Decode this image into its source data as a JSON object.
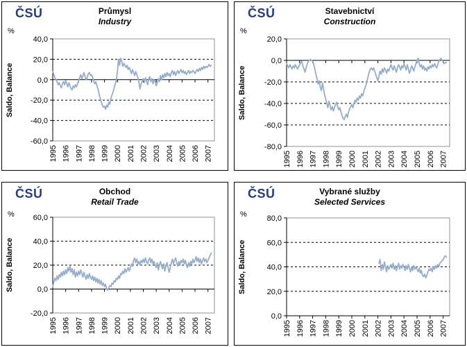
{
  "logo": "ČSÚ",
  "style": {
    "line_color": "#94ADCD",
    "logo_color": "#233C85",
    "plot_border_color": "#909090",
    "grid_color": "#000000"
  },
  "chart_data": [
    {
      "type": "line",
      "title": "Průmysl",
      "subtitle": "Industry",
      "unit": "%",
      "ylabel": "Saldo, Balance",
      "ylim": [
        -60,
        40
      ],
      "y_step": 20,
      "grid": "horizontal-dashed, solid zero axis",
      "legend": "none",
      "x_tick_labels": [
        "1995",
        "1996",
        "1997",
        "1998",
        "1999",
        "2000",
        "2001",
        "2002",
        "2003",
        "2004",
        "2005",
        "2006",
        "2007"
      ],
      "freq": "monthly",
      "start": "1995-01",
      "values": [
        8,
        5,
        2,
        0,
        -2,
        -5,
        -3,
        -6,
        -8,
        -4,
        -2,
        -5,
        -1,
        -4,
        -7,
        -3,
        -6,
        -9,
        -10,
        -6,
        -8,
        -5,
        -7,
        -4,
        -1,
        2,
        5,
        1,
        4,
        7,
        3,
        0,
        2,
        6,
        7,
        4,
        5,
        2,
        -1,
        -4,
        -2,
        -6,
        -9,
        -14,
        -18,
        -22,
        -25,
        -27,
        -26,
        -29,
        -25,
        -27,
        -22,
        -24,
        -18,
        -15,
        -12,
        -8,
        -4,
        -1,
        8,
        20,
        14,
        21,
        18,
        13,
        16,
        14,
        12,
        14,
        10,
        12,
        9,
        6,
        10,
        7,
        4,
        8,
        5,
        2,
        -3,
        -9,
        -4,
        -1,
        1,
        -3,
        2,
        -1,
        -5,
        0,
        3,
        -2,
        1,
        -4,
        0,
        -2,
        -6,
        -3,
        1,
        -2,
        4,
        0,
        5,
        2,
        6,
        3,
        7,
        4,
        6,
        3,
        7,
        9,
        5,
        8,
        4,
        7,
        9,
        6,
        8,
        10,
        7,
        9,
        6,
        8,
        5,
        7,
        9,
        6,
        8,
        7,
        9,
        8,
        6,
        8,
        10,
        8,
        11,
        9,
        12,
        10,
        13,
        11,
        13,
        12,
        13,
        15,
        13,
        14
      ]
    },
    {
      "type": "line",
      "title": "Stavebnictví",
      "subtitle": "Construction",
      "unit": "%",
      "ylabel": "Saldo, Balance",
      "ylim": [
        -80,
        20
      ],
      "y_step": 20,
      "grid": "horizontal-dashed, solid zero axis",
      "legend": "none",
      "x_tick_labels": [
        "1995",
        "1996",
        "1997",
        "1998",
        "1999",
        "2000",
        "2001",
        "2002",
        "2003",
        "2004",
        "2005",
        "2006",
        "2007"
      ],
      "freq": "monthly",
      "start": "1995-01",
      "values": [
        -3,
        -5,
        -7,
        -4,
        -6,
        -8,
        -5,
        -7,
        -4,
        -6,
        -8,
        -6,
        -4,
        -2,
        -1,
        -5,
        -8,
        -11,
        -7,
        -3,
        -1,
        0,
        1,
        0,
        -1,
        -4,
        -8,
        -13,
        -17,
        -22,
        -19,
        -25,
        -28,
        -21,
        -27,
        -32,
        -36,
        -40,
        -44,
        -38,
        -42,
        -46,
        -43,
        -47,
        -44,
        -41,
        -39,
        -43,
        -46,
        -44,
        -48,
        -51,
        -54,
        -55,
        -52,
        -50,
        -53,
        -48,
        -45,
        -43,
        -41,
        -44,
        -40,
        -37,
        -39,
        -35,
        -37,
        -33,
        -35,
        -31,
        -33,
        -29,
        -26,
        -23,
        -19,
        -15,
        -11,
        -8,
        -7,
        -9,
        -7,
        -10,
        -13,
        -16,
        -19,
        -14,
        -10,
        -13,
        -8,
        -11,
        -7,
        -9,
        -12,
        -8,
        -10,
        -7,
        -4,
        -7,
        -9,
        -5,
        -8,
        -11,
        -7,
        -4,
        -6,
        -9,
        -5,
        -7,
        -3,
        -6,
        -9,
        -4,
        -8,
        -12,
        -9,
        -5,
        -7,
        -10,
        -6,
        -3,
        0,
        2,
        -3,
        -6,
        -4,
        -8,
        -5,
        -9,
        -7,
        -10,
        -6,
        -8,
        -5,
        -7,
        -4,
        -6,
        -3,
        -5,
        -7,
        -4,
        -1,
        1,
        2,
        0,
        -1,
        -3,
        -2,
        -2
      ]
    },
    {
      "type": "line",
      "title": "Obchod",
      "subtitle": "Retail Trade",
      "unit": "%",
      "ylabel": "Saldo, Balance",
      "ylim": [
        -20,
        60
      ],
      "y_step": 20,
      "grid": "horizontal-dashed, solid zero axis",
      "legend": "none",
      "x_tick_labels": [
        "1995",
        "1996",
        "1997",
        "1998",
        "1999",
        "2000",
        "2001",
        "2002",
        "2003",
        "2004",
        "2005",
        "2006",
        "2007"
      ],
      "freq": "monthly",
      "start": "1995-01",
      "values": [
        2,
        6,
        9,
        7,
        11,
        8,
        12,
        10,
        14,
        11,
        15,
        12,
        16,
        13,
        18,
        15,
        19,
        14,
        17,
        12,
        16,
        10,
        14,
        11,
        15,
        12,
        16,
        13,
        10,
        14,
        11,
        8,
        12,
        9,
        13,
        10,
        8,
        11,
        7,
        10,
        6,
        9,
        5,
        8,
        4,
        7,
        3,
        5,
        2,
        4,
        0,
        -1,
        1,
        3,
        2,
        5,
        4,
        7,
        6,
        9,
        8,
        11,
        9,
        13,
        12,
        15,
        13,
        17,
        14,
        16,
        18,
        15,
        18,
        21,
        19,
        24,
        26,
        22,
        25,
        21,
        23,
        20,
        24,
        22,
        25,
        22,
        26,
        23,
        21,
        24,
        26,
        22,
        25,
        21,
        23,
        20,
        18,
        22,
        16,
        20,
        23,
        19,
        17,
        21,
        15,
        19,
        22,
        18,
        14,
        18,
        22,
        25,
        21,
        24,
        26,
        22,
        19,
        23,
        20,
        24,
        22,
        25,
        21,
        24,
        20,
        18,
        22,
        19,
        23,
        21,
        25,
        22,
        24,
        27,
        23,
        26,
        22,
        25,
        21,
        24,
        26,
        23,
        25,
        22,
        24,
        26,
        28,
        30
      ]
    },
    {
      "type": "line",
      "title": "Vybrané služby",
      "subtitle": "Selected Services",
      "unit": "%",
      "ylabel": "Saldo, Balance",
      "ylim": [
        0,
        80
      ],
      "y_step": 20,
      "grid": "horizontal-dashed, solid zero axis",
      "legend": "none",
      "x_tick_labels": [
        "1995",
        "1996",
        "1997",
        "1998",
        "1999",
        "2000",
        "2001",
        "2002",
        "2003",
        "2004",
        "2005",
        "2006",
        "2007"
      ],
      "freq": "monthly",
      "start": "2002-02",
      "values": [
        43,
        46,
        37,
        42,
        38,
        44,
        40,
        36,
        41,
        38,
        40,
        42,
        39,
        43,
        38,
        41,
        37,
        40,
        43,
        38,
        41,
        39,
        42,
        40,
        37,
        41,
        38,
        42,
        39,
        36,
        40,
        37,
        41,
        38,
        40,
        38,
        36,
        39,
        35,
        37,
        33,
        32,
        34,
        31,
        33,
        36,
        38,
        37,
        39,
        36,
        40,
        38,
        41,
        39,
        42,
        40,
        43,
        44,
        45,
        46,
        48,
        49,
        48
      ]
    }
  ]
}
